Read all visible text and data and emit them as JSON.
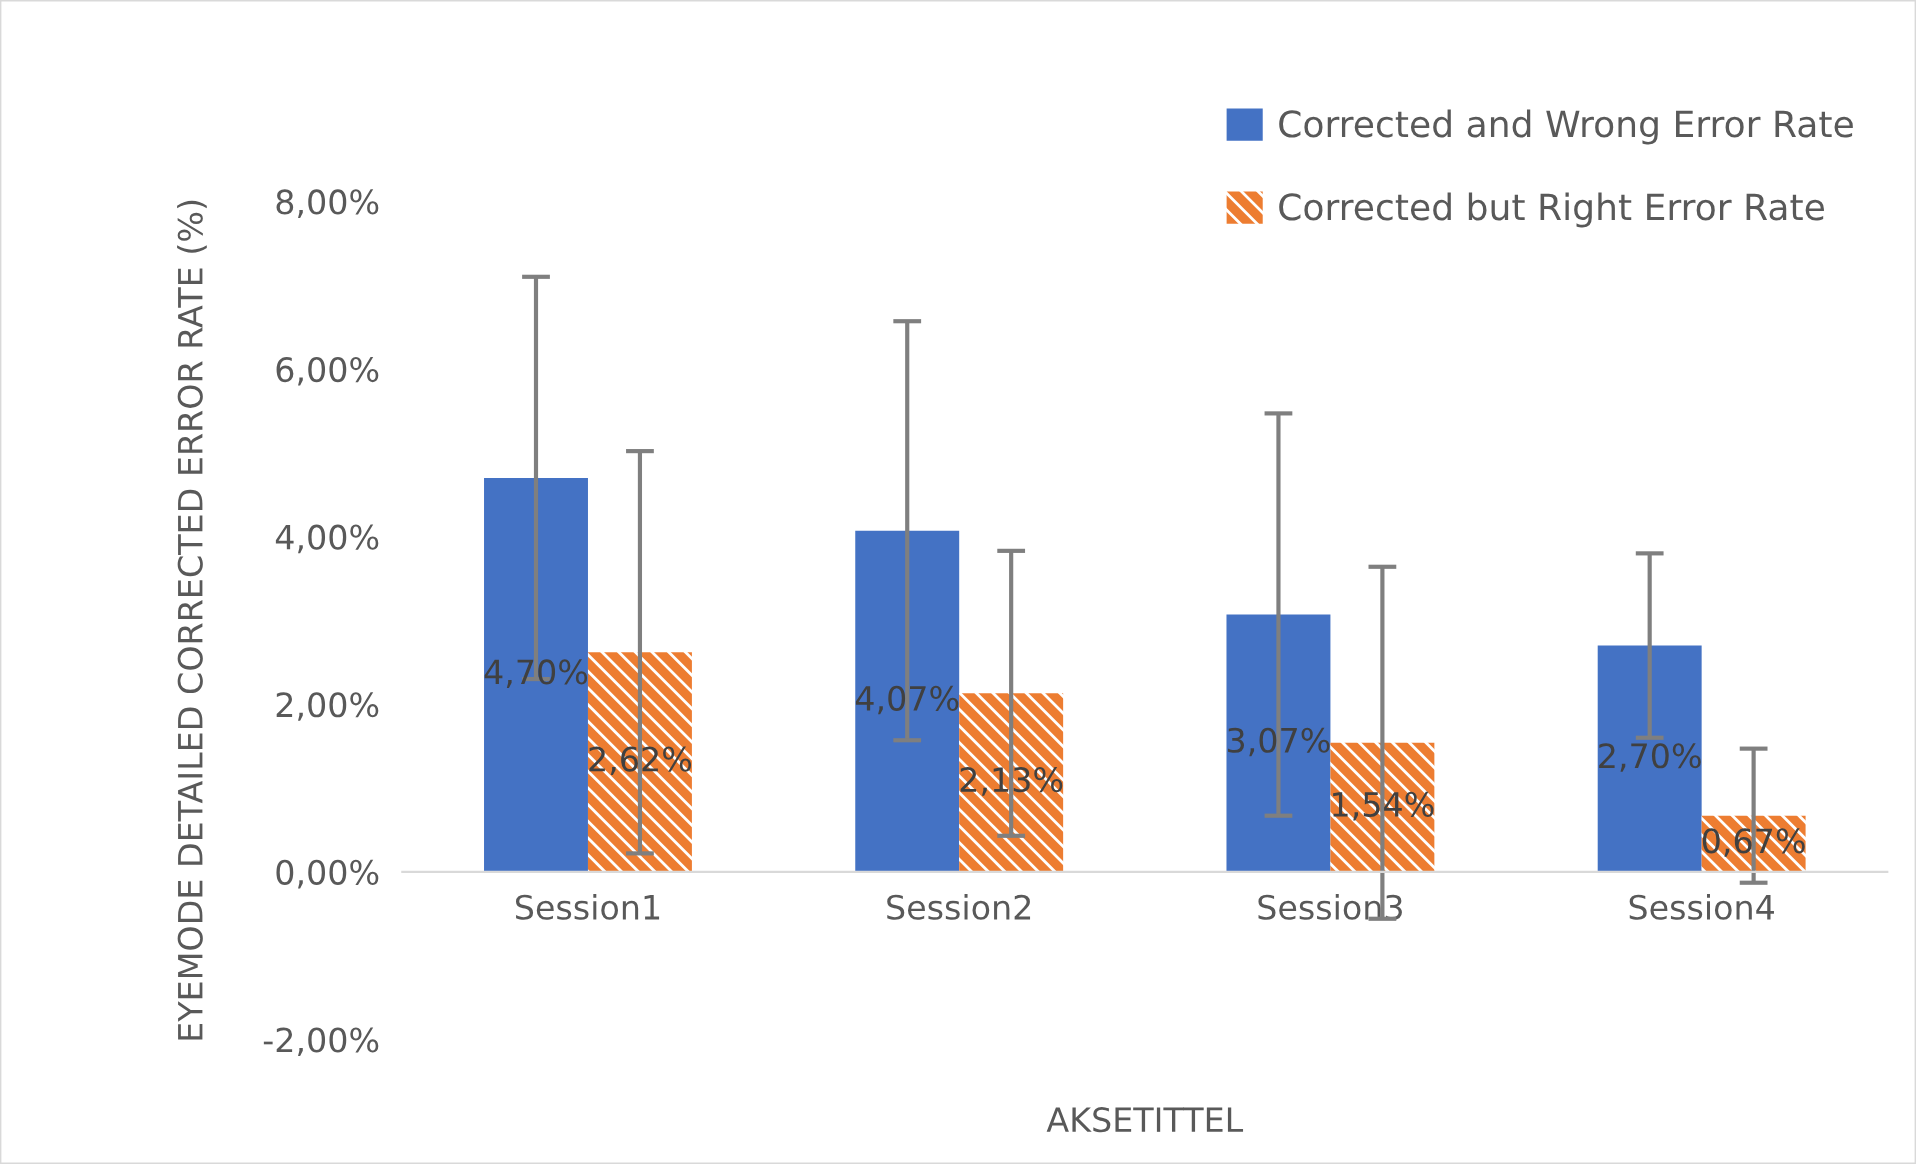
{
  "chart_data": {
    "type": "bar",
    "xlabel": "AKSETITTEL",
    "ylabel": "EYEMODE DETAILED CORRECTED ERROR RATE (%)",
    "categories": [
      "Session1",
      "Session2",
      "Session3",
      "Session4"
    ],
    "series": [
      {
        "name": "Corrected and Wrong Error Rate",
        "color": "#4472c4",
        "values": [
          4.7,
          4.07,
          3.07,
          2.7
        ],
        "errors": [
          2.4,
          2.5,
          2.4,
          1.1
        ],
        "value_labels": [
          "4,70%",
          "4,07%",
          "3,07%",
          "2,70%"
        ]
      },
      {
        "name": "Corrected but Right Error Rate",
        "color": "#ed7d31",
        "values": [
          2.62,
          2.13,
          1.54,
          0.67
        ],
        "errors": [
          2.4,
          1.7,
          2.1,
          0.8
        ],
        "value_labels": [
          "2,62%",
          "2,13%",
          "1,54%",
          "0,67%"
        ]
      }
    ],
    "ylim": [
      -2,
      8
    ],
    "yticks": [
      {
        "value": -2,
        "label": "-2,00%"
      },
      {
        "value": 0,
        "label": "0,00%"
      },
      {
        "value": 2,
        "label": "2,00%"
      },
      {
        "value": 4,
        "label": "4,00%"
      },
      {
        "value": 6,
        "label": "6,00%"
      },
      {
        "value": 8,
        "label": "8,00%"
      }
    ],
    "grid": false,
    "legend": "top right"
  }
}
